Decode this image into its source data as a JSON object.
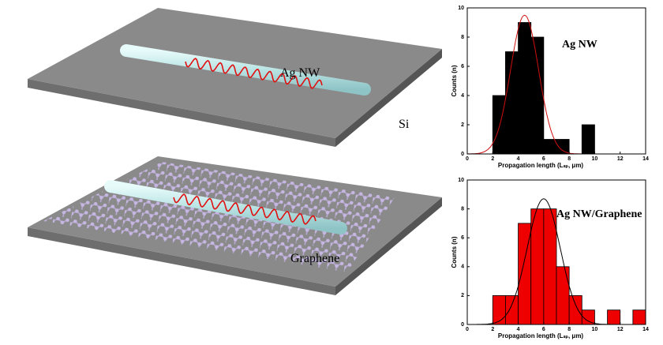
{
  "illustration": {
    "top_label": "Ag NW",
    "substrate_label": "Si",
    "bottom_label": "Graphene"
  },
  "chart_data": [
    {
      "type": "histogram",
      "label": "Ag NW",
      "xlabel": "Propagation length (Lₛₚ, μm)",
      "ylabel": "Counts (n)",
      "bins": [
        2,
        3,
        4,
        5,
        6,
        7,
        8,
        9,
        10
      ],
      "counts": [
        4,
        7,
        9,
        8,
        1,
        1,
        0,
        2
      ],
      "color": "#000000",
      "fit": {
        "color": "#d01010",
        "peak": 9.5,
        "center": 4.5,
        "sigma": 1.1
      },
      "xlim": [
        0,
        14
      ],
      "xticks": [
        0,
        2,
        4,
        6,
        8,
        10,
        12,
        14
      ],
      "ylim": [
        0,
        10
      ],
      "yticks": [
        0,
        2,
        4,
        6,
        8,
        10
      ]
    },
    {
      "type": "histogram",
      "label": "Ag NW/Graphene",
      "xlabel": "Propagation length (Lₛₚ, μm)",
      "ylabel": "Counts (n)",
      "bins": [
        2,
        3,
        4,
        5,
        6,
        7,
        8,
        9,
        10,
        11,
        12,
        13,
        14
      ],
      "counts": [
        2,
        2,
        7,
        8,
        8,
        4,
        2,
        1,
        0,
        1,
        0,
        1
      ],
      "color": "#ee0000",
      "fit": {
        "color": "#000000",
        "peak": 8.7,
        "center": 6,
        "sigma": 1.3
      },
      "xlim": [
        0,
        14
      ],
      "xticks": [
        0,
        2,
        4,
        6,
        8,
        10,
        12,
        14
      ],
      "ylim": [
        0,
        10
      ],
      "yticks": [
        0,
        2,
        4,
        6,
        8,
        10
      ]
    }
  ]
}
